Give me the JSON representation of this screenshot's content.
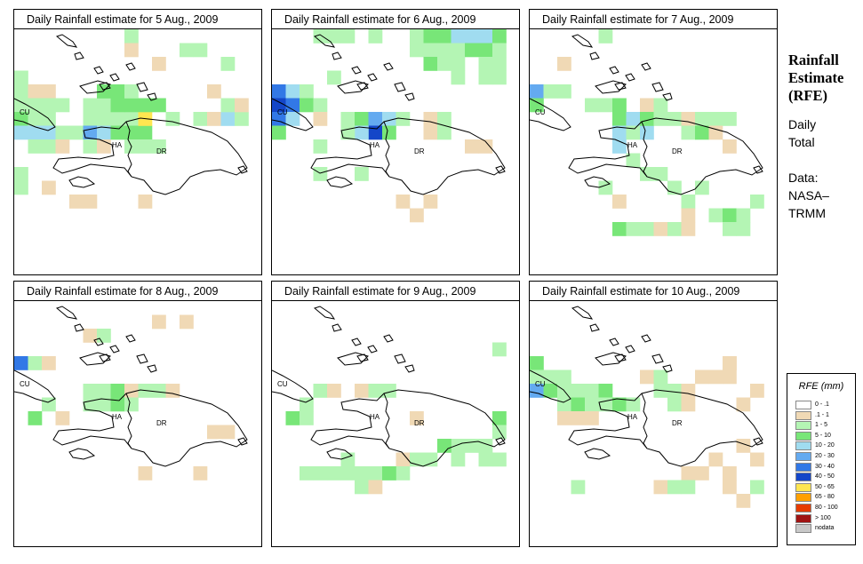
{
  "panels": [
    {
      "title": "Daily Rainfall estimate for  5 Aug., 2009"
    },
    {
      "title": "Daily Rainfall estimate for  6 Aug., 2009"
    },
    {
      "title": "Daily Rainfall estimate for  7 Aug., 2009"
    },
    {
      "title": "Daily Rainfall estimate for  8 Aug., 2009"
    },
    {
      "title": "Daily Rainfall estimate for  9 Aug., 2009"
    },
    {
      "title": "Daily Rainfall estimate for  10 Aug., 2009"
    }
  ],
  "map_labels": {
    "cuba": "CU",
    "haiti": "HA",
    "dominican_republic": "DR"
  },
  "side": {
    "title": "Rainfall\nEstimate\n(RFE)",
    "period": "Daily\nTotal",
    "data_label": "Data:",
    "source_1": "NASA–",
    "source_2": "TRMM"
  },
  "legend": {
    "title": "RFE (mm)",
    "items": [
      {
        "label": "0 - .1",
        "color": "#ffffff"
      },
      {
        "label": ".1 - 1",
        "color": "#f0d9b5"
      },
      {
        "label": "1 - 5",
        "color": "#b4f5b4"
      },
      {
        "label": "5 - 10",
        "color": "#78e678"
      },
      {
        "label": "10 - 20",
        "color": "#a0dcf0"
      },
      {
        "label": "20 - 30",
        "color": "#64aaf0"
      },
      {
        "label": "30 - 40",
        "color": "#3278e6"
      },
      {
        "label": "40 - 50",
        "color": "#1446c8"
      },
      {
        "label": "50 - 65",
        "color": "#ffe650"
      },
      {
        "label": "65 - 80",
        "color": "#ffa000"
      },
      {
        "label": "80 - 100",
        "color": "#e63c00"
      },
      {
        "label": "> 100",
        "color": "#a01414"
      },
      {
        "label": "nodata",
        "color": "#c8c8c8"
      }
    ]
  },
  "rainfall_cells": [
    [
      [
        8,
        0,
        2
      ],
      [
        8,
        1,
        1
      ],
      [
        12,
        1,
        2
      ],
      [
        13,
        1,
        2
      ],
      [
        10,
        2,
        1
      ],
      [
        15,
        2,
        2
      ],
      [
        0,
        3,
        2
      ],
      [
        0,
        4,
        2
      ],
      [
        1,
        4,
        1
      ],
      [
        2,
        4,
        1
      ],
      [
        0,
        5,
        2
      ],
      [
        1,
        5,
        2
      ],
      [
        2,
        5,
        2
      ],
      [
        3,
        5,
        2
      ],
      [
        5,
        5,
        2
      ],
      [
        6,
        5,
        2
      ],
      [
        0,
        6,
        3
      ],
      [
        1,
        6,
        2
      ],
      [
        2,
        6,
        2
      ],
      [
        5,
        6,
        2
      ],
      [
        6,
        6,
        2
      ],
      [
        7,
        6,
        2
      ],
      [
        8,
        6,
        2
      ],
      [
        0,
        7,
        4
      ],
      [
        1,
        7,
        4
      ],
      [
        2,
        7,
        4
      ],
      [
        3,
        7,
        2
      ],
      [
        4,
        7,
        2
      ],
      [
        5,
        7,
        5
      ],
      [
        6,
        7,
        4
      ],
      [
        7,
        7,
        3
      ],
      [
        8,
        7,
        3
      ],
      [
        9,
        7,
        3
      ],
      [
        1,
        8,
        2
      ],
      [
        2,
        8,
        2
      ],
      [
        5,
        8,
        2
      ],
      [
        8,
        8,
        2
      ],
      [
        9,
        8,
        2
      ],
      [
        7,
        5,
        3
      ],
      [
        8,
        5,
        3
      ],
      [
        6,
        4,
        3
      ],
      [
        7,
        4,
        3
      ],
      [
        8,
        4,
        2
      ],
      [
        9,
        6,
        8
      ],
      [
        9,
        5,
        3
      ],
      [
        10,
        5,
        3
      ],
      [
        11,
        6,
        2
      ],
      [
        13,
        6,
        2
      ],
      [
        14,
        6,
        1
      ],
      [
        15,
        6,
        4
      ],
      [
        16,
        6,
        2
      ],
      [
        6,
        8,
        1
      ],
      [
        3,
        8,
        1
      ],
      [
        0,
        10,
        2
      ],
      [
        0,
        11,
        2
      ],
      [
        2,
        11,
        1
      ],
      [
        4,
        12,
        1
      ],
      [
        9,
        12,
        1
      ],
      [
        5,
        12,
        1
      ],
      [
        14,
        4,
        1
      ],
      [
        15,
        5,
        2
      ],
      [
        16,
        5,
        1
      ],
      [
        10,
        8,
        2
      ]
    ],
    [
      [
        3,
        0,
        2
      ],
      [
        4,
        0,
        2
      ],
      [
        5,
        0,
        2
      ],
      [
        7,
        0,
        2
      ],
      [
        10,
        0,
        2
      ],
      [
        11,
        0,
        3
      ],
      [
        12,
        0,
        3
      ],
      [
        13,
        0,
        4
      ],
      [
        14,
        0,
        4
      ],
      [
        15,
        0,
        4
      ],
      [
        16,
        0,
        3
      ],
      [
        10,
        1,
        2
      ],
      [
        11,
        1,
        2
      ],
      [
        12,
        1,
        2
      ],
      [
        13,
        1,
        2
      ],
      [
        14,
        1,
        3
      ],
      [
        15,
        1,
        3
      ],
      [
        16,
        1,
        2
      ],
      [
        11,
        2,
        3
      ],
      [
        12,
        2,
        2
      ],
      [
        13,
        2,
        2
      ],
      [
        15,
        2,
        2
      ],
      [
        16,
        2,
        2
      ],
      [
        15,
        3,
        2
      ],
      [
        16,
        3,
        2
      ],
      [
        13,
        3,
        2
      ],
      [
        0,
        4,
        6
      ],
      [
        1,
        4,
        4
      ],
      [
        2,
        4,
        2
      ],
      [
        0,
        5,
        7
      ],
      [
        1,
        5,
        6
      ],
      [
        2,
        5,
        3
      ],
      [
        3,
        5,
        2
      ],
      [
        0,
        6,
        6
      ],
      [
        1,
        6,
        4
      ],
      [
        3,
        6,
        1
      ],
      [
        5,
        6,
        2
      ],
      [
        6,
        6,
        3
      ],
      [
        7,
        6,
        5
      ],
      [
        8,
        6,
        4
      ],
      [
        7,
        7,
        7
      ],
      [
        6,
        7,
        4
      ],
      [
        8,
        7,
        3
      ],
      [
        5,
        7,
        2
      ],
      [
        3,
        8,
        2
      ],
      [
        9,
        6,
        2
      ],
      [
        11,
        6,
        1
      ],
      [
        12,
        6,
        2
      ],
      [
        11,
        7,
        1
      ],
      [
        14,
        8,
        1
      ],
      [
        6,
        10,
        2
      ],
      [
        3,
        10,
        2
      ],
      [
        9,
        12,
        1
      ],
      [
        10,
        13,
        1
      ],
      [
        11,
        12,
        1
      ],
      [
        12,
        7,
        2
      ],
      [
        0,
        7,
        3
      ],
      [
        15,
        8,
        1
      ],
      [
        4,
        3,
        2
      ]
    ],
    [
      [
        0,
        4,
        5
      ],
      [
        0,
        5,
        3
      ],
      [
        1,
        4,
        2
      ],
      [
        2,
        4,
        2
      ],
      [
        5,
        5,
        2
      ],
      [
        6,
        5,
        2
      ],
      [
        4,
        5,
        2
      ],
      [
        8,
        5,
        1
      ],
      [
        9,
        5,
        2
      ],
      [
        6,
        6,
        3
      ],
      [
        7,
        6,
        4
      ],
      [
        6,
        7,
        4
      ],
      [
        7,
        7,
        2
      ],
      [
        8,
        7,
        4
      ],
      [
        6,
        8,
        4
      ],
      [
        8,
        6,
        3
      ],
      [
        9,
        6,
        2
      ],
      [
        10,
        6,
        2
      ],
      [
        11,
        6,
        1
      ],
      [
        12,
        6,
        2
      ],
      [
        13,
        6,
        2
      ],
      [
        14,
        6,
        2
      ],
      [
        11,
        7,
        2
      ],
      [
        12,
        7,
        3
      ],
      [
        13,
        7,
        1
      ],
      [
        14,
        8,
        1
      ],
      [
        7,
        9,
        2
      ],
      [
        8,
        10,
        2
      ],
      [
        9,
        10,
        2
      ],
      [
        5,
        11,
        2
      ],
      [
        6,
        12,
        1
      ],
      [
        10,
        11,
        2
      ],
      [
        12,
        11,
        2
      ],
      [
        11,
        12,
        2
      ],
      [
        13,
        13,
        2
      ],
      [
        14,
        13,
        3
      ],
      [
        15,
        13,
        2
      ],
      [
        6,
        14,
        3
      ],
      [
        7,
        14,
        2
      ],
      [
        8,
        14,
        2
      ],
      [
        9,
        14,
        1
      ],
      [
        10,
        14,
        2
      ],
      [
        11,
        14,
        1
      ],
      [
        14,
        14,
        2
      ],
      [
        15,
        14,
        2
      ],
      [
        11,
        13,
        1
      ],
      [
        16,
        12,
        2
      ],
      [
        2,
        2,
        1
      ],
      [
        5,
        0,
        2
      ],
      [
        6,
        5,
        3
      ]
    ],
    [
      [
        0,
        4,
        6
      ],
      [
        1,
        4,
        2
      ],
      [
        2,
        4,
        1
      ],
      [
        5,
        6,
        2
      ],
      [
        6,
        6,
        2
      ],
      [
        7,
        6,
        3
      ],
      [
        5,
        7,
        2
      ],
      [
        6,
        7,
        2
      ],
      [
        7,
        7,
        3
      ],
      [
        1,
        8,
        3
      ],
      [
        2,
        7,
        2
      ],
      [
        8,
        6,
        1
      ],
      [
        9,
        6,
        2
      ],
      [
        10,
        6,
        2
      ],
      [
        11,
        6,
        1
      ],
      [
        3,
        8,
        1
      ],
      [
        8,
        7,
        2
      ],
      [
        14,
        9,
        1
      ],
      [
        15,
        9,
        1
      ],
      [
        9,
        12,
        1
      ],
      [
        13,
        12,
        1
      ],
      [
        10,
        1,
        1
      ],
      [
        12,
        1,
        1
      ],
      [
        5,
        2,
        1
      ],
      [
        6,
        2,
        2
      ]
    ],
    [
      [
        3,
        6,
        2
      ],
      [
        4,
        6,
        1
      ],
      [
        6,
        6,
        1
      ],
      [
        7,
        6,
        2
      ],
      [
        8,
        6,
        2
      ],
      [
        1,
        8,
        3
      ],
      [
        2,
        8,
        2
      ],
      [
        2,
        7,
        2
      ],
      [
        10,
        8,
        1
      ],
      [
        16,
        8,
        3
      ],
      [
        16,
        9,
        2
      ],
      [
        15,
        10,
        2
      ],
      [
        14,
        10,
        2
      ],
      [
        13,
        10,
        2
      ],
      [
        12,
        10,
        3
      ],
      [
        13,
        11,
        2
      ],
      [
        9,
        11,
        1
      ],
      [
        10,
        11,
        2
      ],
      [
        11,
        11,
        2
      ],
      [
        3,
        12,
        2
      ],
      [
        4,
        12,
        2
      ],
      [
        5,
        12,
        2
      ],
      [
        6,
        12,
        2
      ],
      [
        7,
        12,
        2
      ],
      [
        8,
        12,
        2
      ],
      [
        9,
        12,
        2
      ],
      [
        6,
        13,
        2
      ],
      [
        7,
        13,
        1
      ],
      [
        8,
        12,
        3
      ],
      [
        16,
        11,
        2
      ],
      [
        15,
        11,
        2
      ],
      [
        5,
        11,
        2
      ],
      [
        16,
        3,
        2
      ],
      [
        2,
        12,
        2
      ]
    ],
    [
      [
        0,
        4,
        3
      ],
      [
        0,
        5,
        2
      ],
      [
        1,
        5,
        2
      ],
      [
        2,
        5,
        2
      ],
      [
        0,
        6,
        5
      ],
      [
        1,
        6,
        3
      ],
      [
        2,
        6,
        2
      ],
      [
        3,
        6,
        2
      ],
      [
        4,
        6,
        2
      ],
      [
        5,
        6,
        3
      ],
      [
        2,
        7,
        2
      ],
      [
        3,
        7,
        3
      ],
      [
        4,
        7,
        2
      ],
      [
        5,
        7,
        2
      ],
      [
        6,
        7,
        3
      ],
      [
        7,
        7,
        2
      ],
      [
        4,
        8,
        1
      ],
      [
        3,
        8,
        1
      ],
      [
        8,
        5,
        1
      ],
      [
        9,
        5,
        2
      ],
      [
        9,
        6,
        2
      ],
      [
        10,
        6,
        2
      ],
      [
        11,
        6,
        1
      ],
      [
        10,
        7,
        2
      ],
      [
        11,
        7,
        1
      ],
      [
        12,
        5,
        1
      ],
      [
        13,
        5,
        1
      ],
      [
        14,
        4,
        1
      ],
      [
        16,
        6,
        1
      ],
      [
        15,
        7,
        1
      ],
      [
        14,
        5,
        1
      ],
      [
        15,
        10,
        1
      ],
      [
        16,
        11,
        1
      ],
      [
        14,
        12,
        1
      ],
      [
        11,
        12,
        1
      ],
      [
        12,
        12,
        1
      ],
      [
        13,
        11,
        1
      ],
      [
        3,
        13,
        2
      ],
      [
        9,
        13,
        1
      ],
      [
        10,
        13,
        2
      ],
      [
        11,
        13,
        2
      ],
      [
        14,
        13,
        1
      ],
      [
        16,
        13,
        2
      ],
      [
        15,
        14,
        1
      ],
      [
        14,
        4,
        1
      ],
      [
        2,
        8,
        1
      ]
    ]
  ]
}
